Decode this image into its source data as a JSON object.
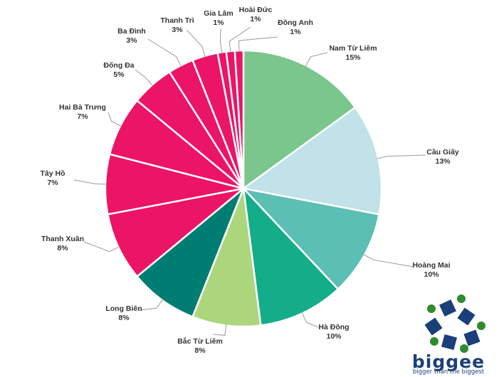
{
  "chart_data": {
    "type": "pie",
    "title": "",
    "slices": [
      {
        "label": "Nam Từ Liêm",
        "pct_label": "15%",
        "value": 15,
        "color": "#7ac68c"
      },
      {
        "label": "Cầu Giấy",
        "pct_label": "13%",
        "value": 13,
        "color": "#c0e2e8"
      },
      {
        "label": "Hoàng Mai",
        "pct_label": "10%",
        "value": 10,
        "color": "#5bbfb4"
      },
      {
        "label": "Hà Đông",
        "pct_label": "10%",
        "value": 10,
        "color": "#14ad8a"
      },
      {
        "label": "Bắc Từ Liêm",
        "pct_label": "8%",
        "value": 8,
        "color": "#acd67c"
      },
      {
        "label": "Long Biên",
        "pct_label": "8%",
        "value": 8,
        "color": "#007d73"
      },
      {
        "label": "Thanh Xuân",
        "pct_label": "8%",
        "value": 8,
        "color": "#ec1466"
      },
      {
        "label": "Tây Hồ",
        "pct_label": "7%",
        "value": 7,
        "color": "#ec1466"
      },
      {
        "label": "Hai Bà Trưng",
        "pct_label": "7%",
        "value": 7,
        "color": "#ec1466"
      },
      {
        "label": "Đống Đa",
        "pct_label": "5%",
        "value": 5,
        "color": "#ec1466"
      },
      {
        "label": "Ba Đình",
        "pct_label": "3%",
        "value": 3,
        "color": "#ec1466"
      },
      {
        "label": "Thanh Trì",
        "pct_label": "3%",
        "value": 3,
        "color": "#ec1466"
      },
      {
        "label": "Gia Lâm",
        "pct_label": "1%",
        "value": 1,
        "color": "#ec1466"
      },
      {
        "label": "Hoài Đức",
        "pct_label": "1%",
        "value": 1,
        "color": "#ec1466"
      },
      {
        "label": "Đông Anh",
        "pct_label": "1%",
        "value": 1,
        "color": "#ec1466"
      }
    ]
  },
  "logo": {
    "wordmark": "biggee",
    "tagline": "bigger than the biggest",
    "navy": "#1b3f7a",
    "green": "#2e8b2e"
  }
}
